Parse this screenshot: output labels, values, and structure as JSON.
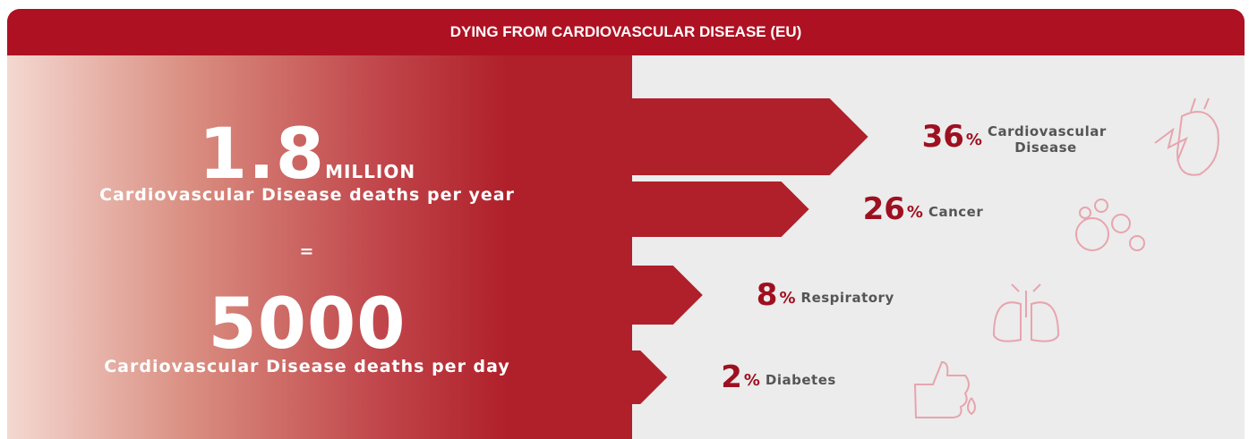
{
  "header": {
    "title": "DYING FROM CARDIOVASCULAR DISEASE (EU)"
  },
  "stats": {
    "yearly_value": 1.8,
    "yearly_unit": "MILLION",
    "yearly_caption": "Cardiovascular Disease deaths per year",
    "equals": "=",
    "daily_value": 5000,
    "daily_caption": "Cardiovascular Disease deaths per day"
  },
  "chart_data": {
    "type": "bar",
    "categories": [
      "Cardiovascular Disease",
      "Cancer",
      "Respiratory",
      "Diabetes"
    ],
    "values": [
      36,
      26,
      8,
      2
    ],
    "unit": "%",
    "color": "#b0202a"
  }
}
